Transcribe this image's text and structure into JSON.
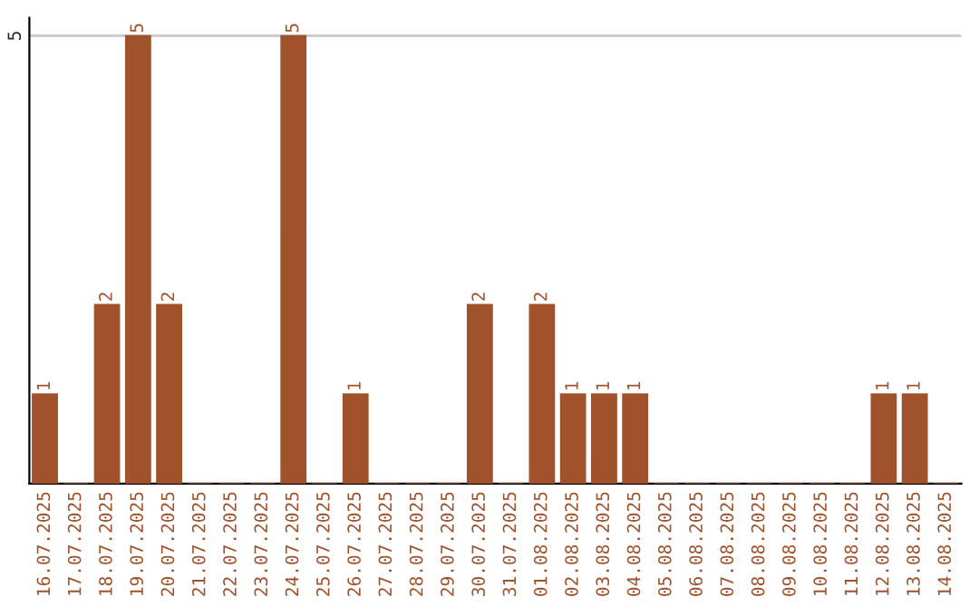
{
  "chart_data": {
    "type": "bar",
    "categories": [
      "16.07.2025",
      "17.07.2025",
      "18.07.2025",
      "19.07.2025",
      "20.07.2025",
      "21.07.2025",
      "22.07.2025",
      "23.07.2025",
      "24.07.2025",
      "25.07.2025",
      "26.07.2025",
      "27.07.2025",
      "28.07.2025",
      "29.07.2025",
      "30.07.2025",
      "31.07.2025",
      "01.08.2025",
      "02.08.2025",
      "03.08.2025",
      "04.08.2025",
      "05.08.2025",
      "06.08.2025",
      "07.08.2025",
      "08.08.2025",
      "09.08.2025",
      "10.08.2025",
      "11.08.2025",
      "12.08.2025",
      "13.08.2025",
      "14.08.2025"
    ],
    "values": [
      1,
      0,
      2,
      5,
      2,
      0,
      0,
      0,
      5,
      0,
      1,
      0,
      0,
      0,
      2,
      0,
      2,
      1,
      1,
      1,
      0,
      0,
      0,
      0,
      0,
      0,
      0,
      1,
      1,
      0
    ],
    "value_labels": [
      "1",
      null,
      "2",
      "5",
      "2",
      null,
      null,
      null,
      "5",
      null,
      "1",
      null,
      null,
      null,
      "2",
      null,
      "2",
      "1",
      "1",
      "1",
      null,
      null,
      null,
      null,
      null,
      null,
      null,
      "1",
      "1",
      null
    ],
    "color": "#a0522d",
    "ylim": [
      0,
      5.2
    ],
    "yticks": [
      5
    ],
    "grid": "y",
    "legend": false
  }
}
